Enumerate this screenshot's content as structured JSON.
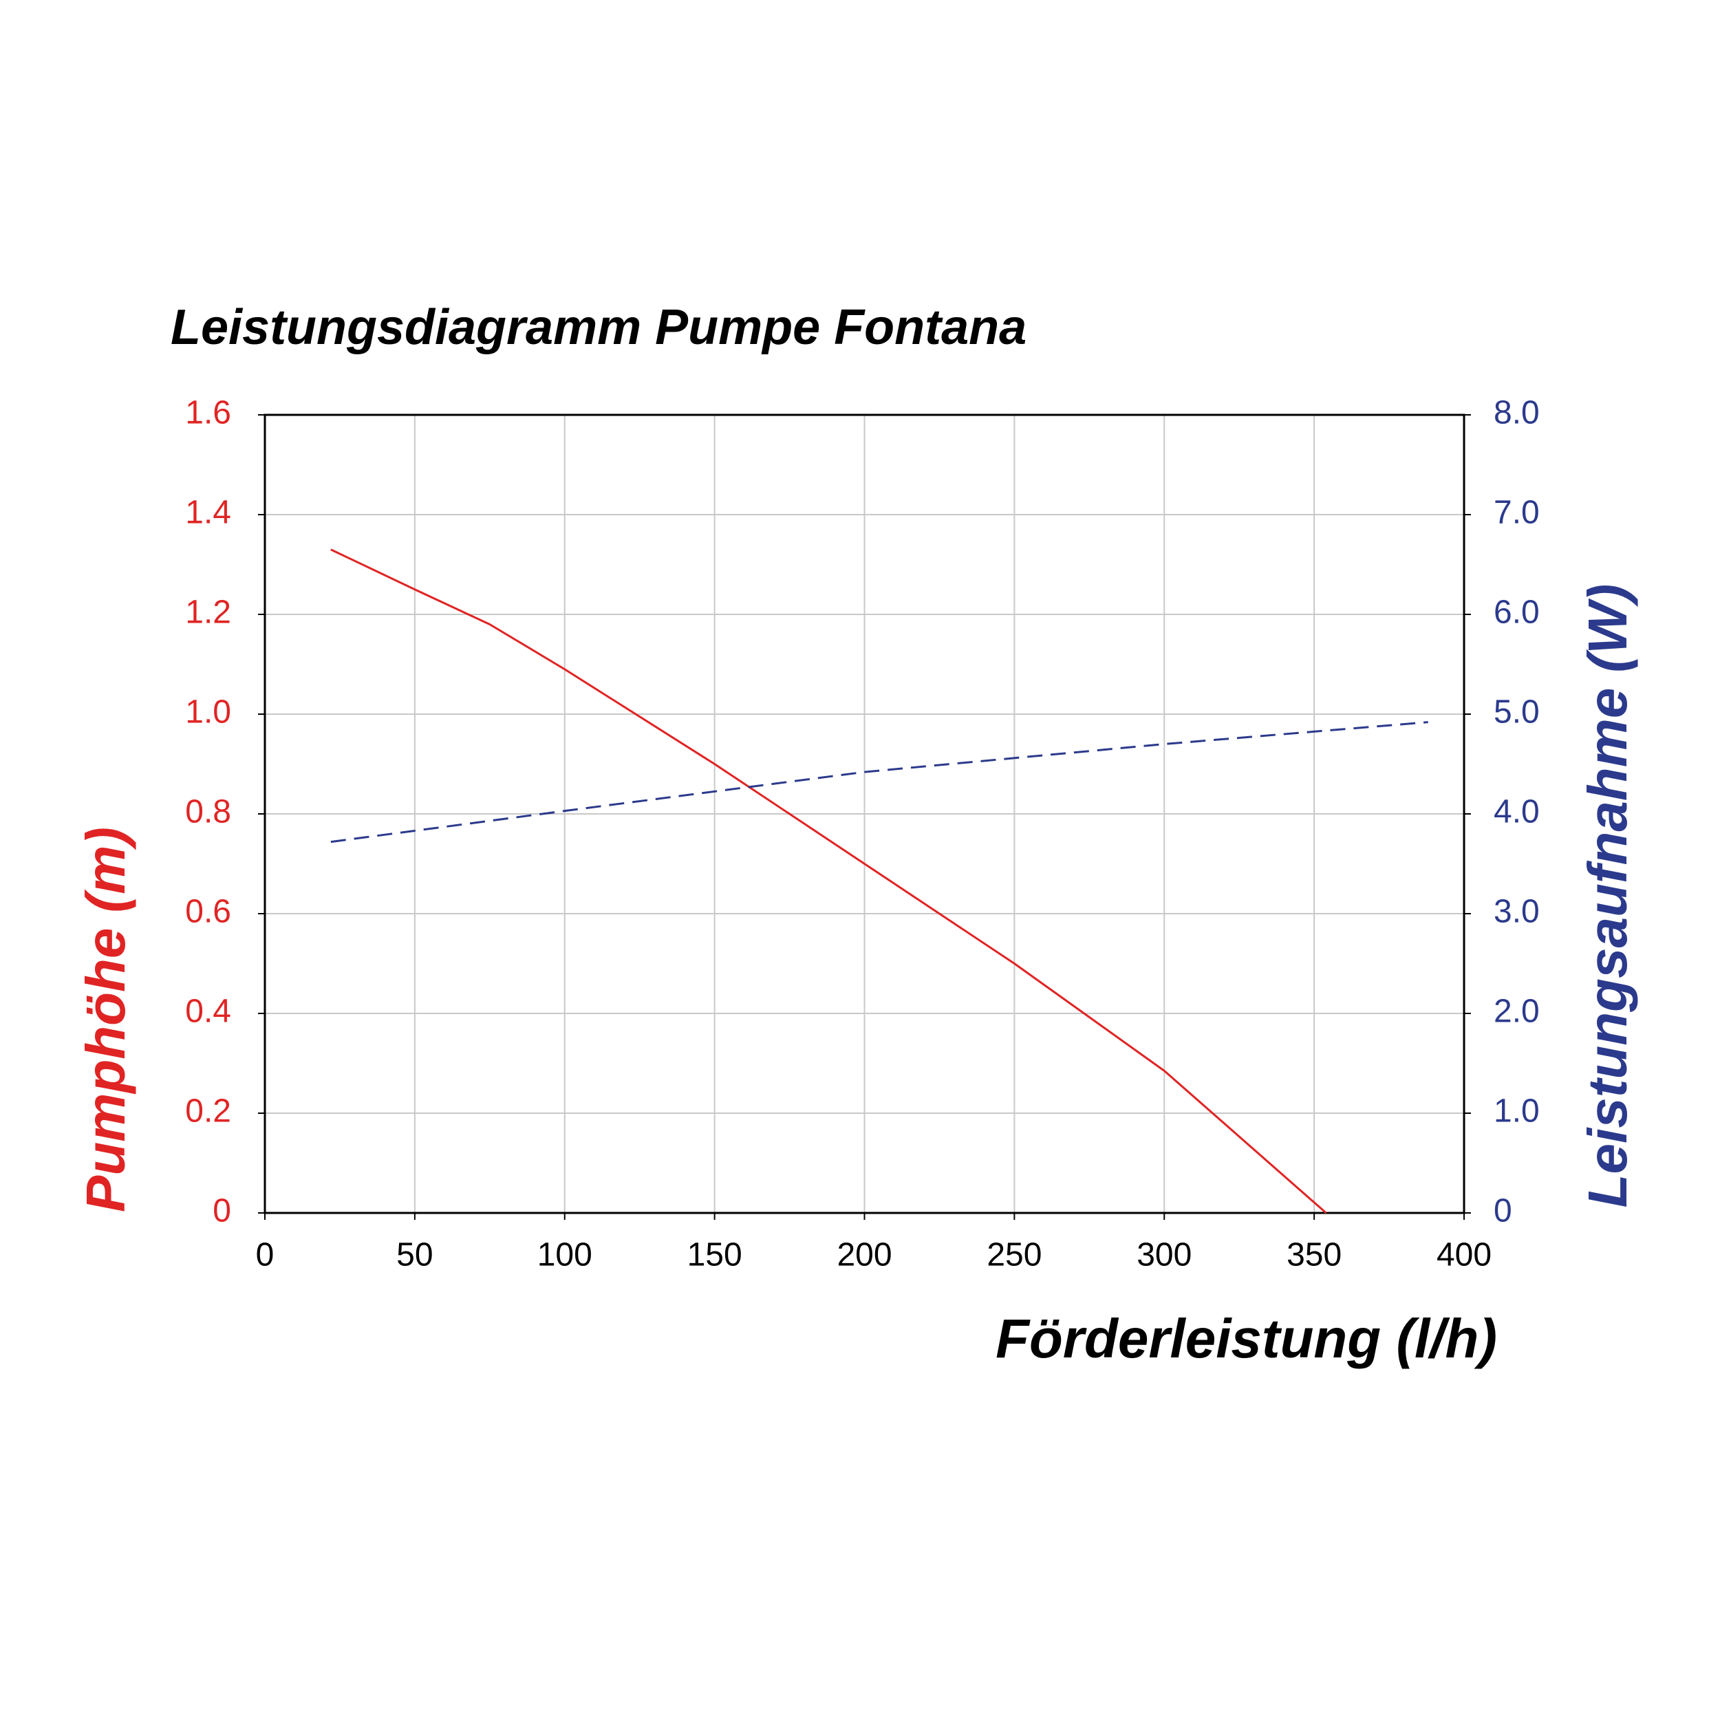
{
  "chart_data": {
    "type": "line",
    "title": "Leistungsdiagramm Pumpe Fontana",
    "x_label": "Förderleistung (l/h)",
    "y_label": "Pumphöhe (m)",
    "y2_label": "Leistungsaufnahme (W)",
    "grid": true,
    "xlim": [
      0,
      400
    ],
    "xticks": [
      0,
      50,
      100,
      150,
      200,
      250,
      300,
      350,
      400
    ],
    "ylim": [
      0,
      1.6
    ],
    "yticks": [
      0,
      0.2,
      0.4,
      0.6,
      0.8,
      {
        "value": 1,
        "label": "1.0"
      },
      1.2,
      1.4,
      1.6
    ],
    "y2lim": [
      0,
      8
    ],
    "y2ticks": [
      0,
      {
        "value": 1,
        "label": "1.0"
      },
      {
        "value": 2,
        "label": "2.0"
      },
      {
        "value": 3,
        "label": "3.0"
      },
      {
        "value": 4,
        "label": "4.0"
      },
      {
        "value": 5,
        "label": "5.0"
      },
      {
        "value": 6,
        "label": "6.0"
      },
      {
        "value": 7,
        "label": "7.0"
      },
      {
        "value": 8,
        "label": "8.0"
      }
    ],
    "y_color": "#e02424",
    "y2_color": "#2b3a8c",
    "series": [
      {
        "color": "#e02424",
        "dashed": false,
        "x": [
          22,
          50,
          75,
          100,
          150,
          200,
          250,
          300,
          354
        ],
        "values": [
          1.33,
          1.25,
          1.18,
          1.09,
          0.9,
          0.7,
          0.5,
          0.285,
          0
        ]
      },
      {
        "color": "#2b3a8c",
        "dashed": true,
        "axis": "y2",
        "x": [
          22,
          100,
          200,
          300,
          388
        ],
        "values": [
          3.72,
          4.03,
          4.42,
          4.7,
          4.92
        ]
      }
    ]
  }
}
